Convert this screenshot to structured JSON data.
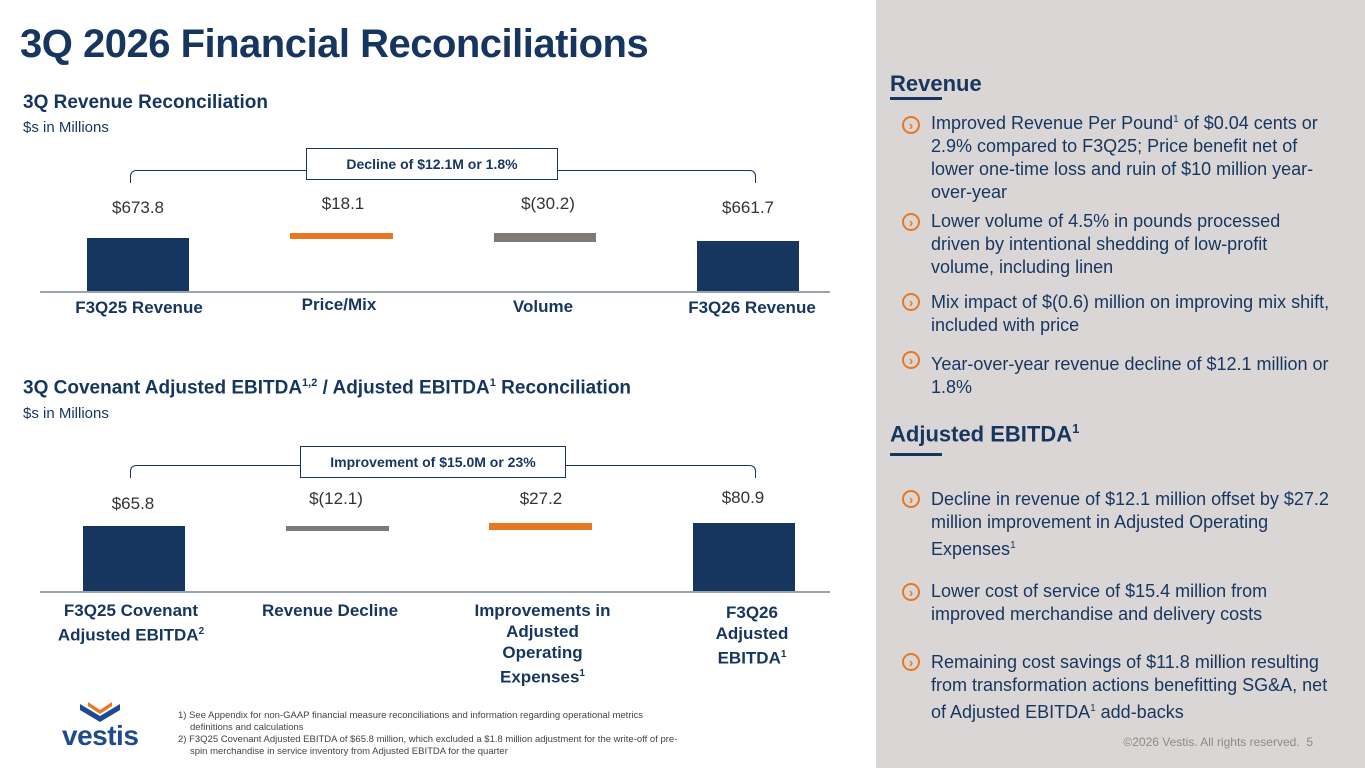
{
  "title": "3Q 2026 Financial Reconciliations",
  "revenue_chart": {
    "heading": "3Q Revenue Reconciliation",
    "units": "$s in Millions",
    "callout": "Decline of $12.1M or 1.8%",
    "values": [
      "$673.8",
      "$18.1",
      "$(30.2)",
      "$661.7"
    ],
    "categories": [
      "F3Q25 Revenue",
      "Price/Mix",
      "Volume",
      "F3Q26 Revenue"
    ]
  },
  "ebitda_chart": {
    "heading": "3Q Covenant Adjusted EBITDA",
    "heading_sup": "1,2",
    "heading_mid": " / Adjusted EBITDA",
    "heading_sup2": "1",
    "heading_end": " Reconciliation",
    "units": "$s in Millions",
    "callout": "Improvement of $15.0M or 23%",
    "values": [
      "$65.8",
      "$(12.1)",
      "$27.2",
      "$80.9"
    ],
    "cat1": "F3Q25 Covenant Adjusted EBITDA",
    "cat1_sup": "2",
    "cat2": "Revenue Decline",
    "cat3": "Improvements in Adjusted Operating Expenses",
    "cat3_sup": "1",
    "cat4": "F3Q26 Adjusted EBITDA",
    "cat4_sup": "1"
  },
  "chart_data": [
    {
      "type": "bar",
      "title": "3Q Revenue Reconciliation",
      "subtitle": "$s in Millions",
      "categories": [
        "F3Q25 Revenue",
        "Price/Mix",
        "Volume",
        "F3Q26 Revenue"
      ],
      "values": [
        673.8,
        18.1,
        -30.2,
        661.7
      ]
    },
    {
      "type": "bar",
      "title": "3Q Covenant Adjusted EBITDA / Adjusted EBITDA Reconciliation",
      "subtitle": "$s in Millions",
      "categories": [
        "F3Q25 Covenant Adjusted EBITDA",
        "Revenue Decline",
        "Improvements in Adjusted Operating Expenses",
        "F3Q26 Adjusted EBITDA"
      ],
      "values": [
        65.8,
        -12.1,
        27.2,
        80.9
      ]
    }
  ],
  "revenue_panel": {
    "heading": "Revenue",
    "b1a": "Improved Revenue Per Pound",
    "b1sup": "1",
    "b1b": " of $0.04 cents or 2.9% compared to F3Q25; Price benefit net of lower one-time loss and ruin of $10 million year-over-year",
    "b2": "Lower volume of 4.5% in pounds processed driven by intentional shedding of low-profit volume, including linen",
    "b3": "Mix impact of $(0.6) million on improving mix shift, included with price",
    "b4": "Year-over-year revenue decline of $12.1 million or 1.8%"
  },
  "ebitda_panel": {
    "heading": "Adjusted EBITDA",
    "heading_sup": "1",
    "b1a": "Decline in revenue of $12.1 million offset by $27.2 million improvement in Adjusted Operating Expenses",
    "b1sup": "1",
    "b2": "Lower cost of service of $15.4 million from improved merchandise and delivery costs",
    "b3a": "Remaining cost savings of $11.8 million resulting from transformation actions benefitting SG&A, net of Adjusted EBITDA",
    "b3sup": "1",
    "b3b": " add-backs"
  },
  "footnotes": {
    "n1": "1)  See Appendix for non-GAAP financial measure reconciliations and information regarding operational metrics definitions and calculations",
    "n2": "2)  F3Q25 Covenant Adjusted EBITDA of $65.8 million, which excluded a $1.8 million adjustment for the write-off of pre-spin merchandise in service inventory from Adjusted EBITDA for the quarter"
  },
  "logo": {
    "text": "vestis"
  },
  "copyright": "©2026 Vestis. All rights reserved.",
  "page_number": "5",
  "colors": {
    "navy": "#16365f",
    "orange": "#e87722",
    "gray": "#7f7a78",
    "panel": "#d9d6d5"
  },
  "icons": [
    "chevron-circle-right-icon",
    "vestis-logo-icon"
  ]
}
